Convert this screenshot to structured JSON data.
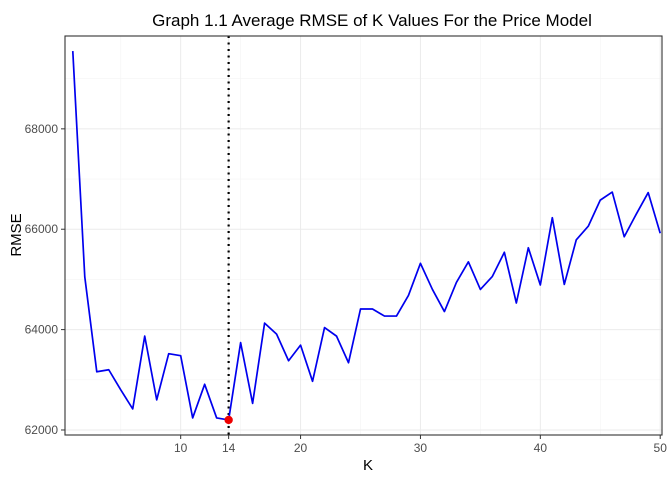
{
  "chart_data": {
    "type": "line",
    "title": "Graph 1.1 Average RMSE of K Values For the Price Model",
    "xlabel": "K",
    "ylabel": "RMSE",
    "x_ticks": [
      10,
      14,
      20,
      30,
      40,
      50
    ],
    "y_ticks": [
      62000,
      64000,
      66000,
      68000
    ],
    "xlim": [
      0.35,
      50.15
    ],
    "ylim": [
      61900,
      69850
    ],
    "grid": true,
    "legend": "none",
    "line_color": "#0000ee",
    "point_color": "#ee0000",
    "vline_color": "#000000",
    "vline_x": 14,
    "highlight_point": {
      "x": 14,
      "y": 62200
    },
    "series": [
      {
        "x": [
          1,
          2,
          3,
          4,
          5,
          6,
          7,
          8,
          9,
          10,
          11,
          12,
          13,
          14,
          15,
          16,
          17,
          18,
          19,
          20,
          21,
          22,
          23,
          24,
          25,
          26,
          27,
          28,
          29,
          30,
          31,
          32,
          33,
          34,
          35,
          36,
          37,
          38,
          39,
          40,
          41,
          42,
          43,
          44,
          45,
          46,
          47,
          48,
          49,
          50
        ],
        "y": [
          69550,
          65050,
          63160,
          63200,
          62800,
          62420,
          63870,
          62600,
          63520,
          63480,
          62240,
          62910,
          62240,
          62200,
          63740,
          62530,
          64130,
          63910,
          63380,
          63690,
          62970,
          64040,
          63870,
          63340,
          64410,
          64410,
          64270,
          64270,
          64680,
          65320,
          64800,
          64360,
          64940,
          65350,
          64800,
          65060,
          65540,
          64530,
          65630,
          64890,
          66230,
          64900,
          65790,
          66060,
          66580,
          66740,
          65850,
          66300,
          66730,
          65920
        ]
      }
    ]
  }
}
